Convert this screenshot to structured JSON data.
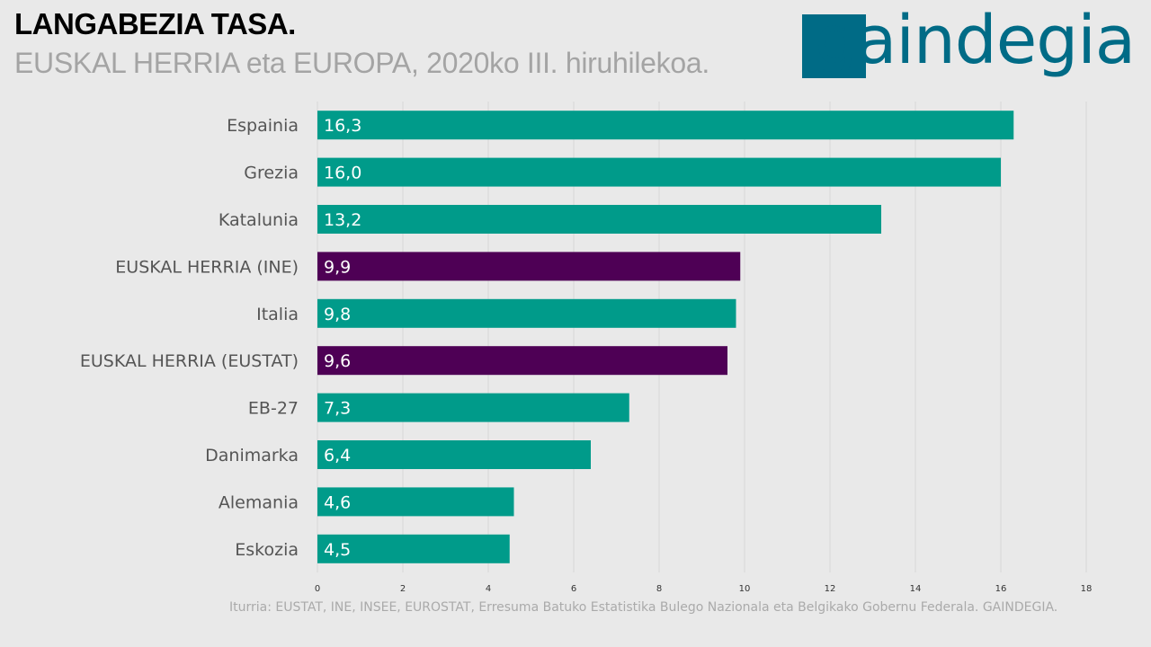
{
  "header": {
    "title": "LANGABEZIA TASA.",
    "subtitle": "EUSKAL HERRIA eta EUROPA, 2020ko III. hiruhilekoa."
  },
  "logo": {
    "text": "gaindegia",
    "color": "#006b86"
  },
  "source": "Iturria: EUSTAT, INE, INSEE, EUROSTAT, Erresuma Batuko Estatistika Bulego Nazionala eta Belgikako Gobernu Federala. GAINDEGIA.",
  "chart_data": {
    "type": "bar",
    "orientation": "horizontal",
    "categories": [
      "Espainia",
      "Grezia",
      "Katalunia",
      "EUSKAL HERRIA (INE)",
      "Italia",
      "EUSKAL HERRIA (EUSTAT)",
      "EB-27",
      "Danimarka",
      "Alemania",
      "Eskozia"
    ],
    "values": [
      16.3,
      16.0,
      13.2,
      9.9,
      9.8,
      9.6,
      7.3,
      6.4,
      4.6,
      4.5
    ],
    "value_labels": [
      "16,3",
      "16,0",
      "13,2",
      "9,9",
      "9,8",
      "9,6",
      "7,3",
      "6,4",
      "4,6",
      "4,5"
    ],
    "highlight": [
      false,
      false,
      false,
      true,
      false,
      true,
      false,
      false,
      false,
      false
    ],
    "colors": {
      "default": "#009b8a",
      "highlight": "#4e0055"
    },
    "xlim": [
      0,
      18
    ],
    "xticks": [
      0,
      2,
      4,
      6,
      8,
      10,
      12,
      14,
      16,
      18
    ],
    "grid": true,
    "legend": false
  }
}
